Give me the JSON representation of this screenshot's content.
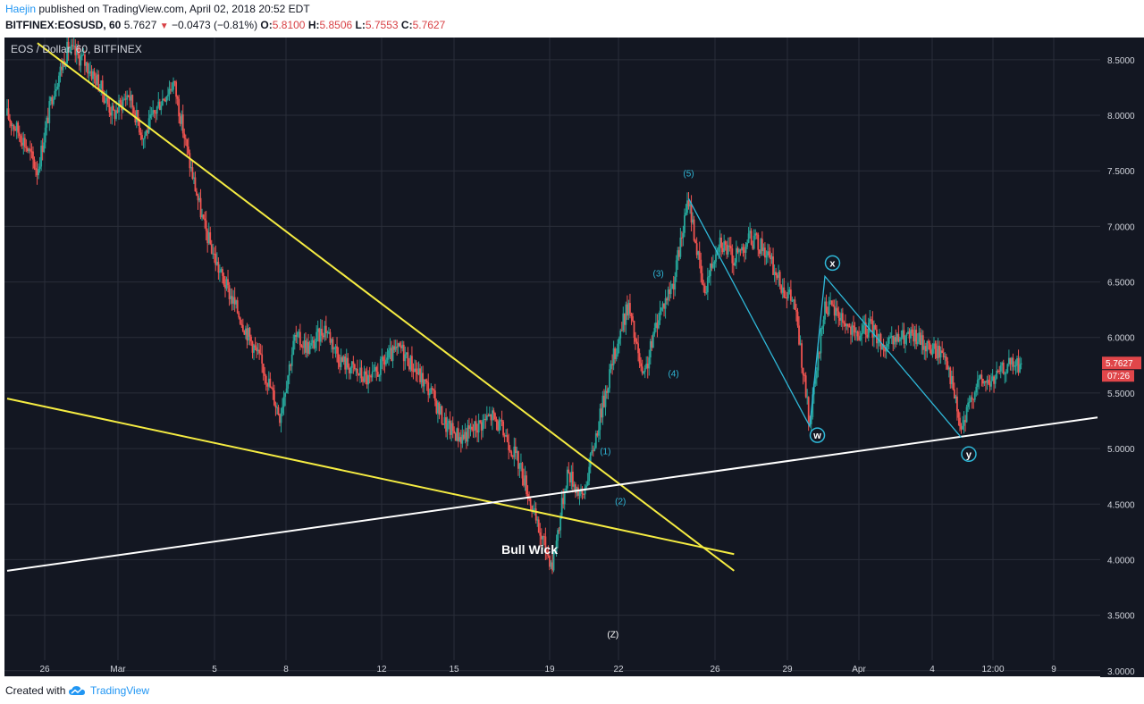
{
  "header": {
    "author": "Haejin",
    "published_text": "published on TradingView.com, April 02, 2018 20:52 EDT",
    "symbol": "BITFINEX:EOSUSD, 60",
    "last": "5.7627",
    "down_arrow": "▼",
    "change": "−0.0473 (−0.81%)",
    "o_label": "O:",
    "o_value": "5.8100",
    "h_label": "H:",
    "h_value": "5.8506",
    "l_label": "L:",
    "l_value": "5.7553",
    "c_label": "C:",
    "c_value": "5.7627"
  },
  "footer": {
    "created_with": "Created with",
    "brand": "TradingView"
  },
  "colors": {
    "background": "#131722",
    "grid": "#2a2e39",
    "bull": "#26a69a",
    "bear": "#ef5350",
    "trendline": "#f5ec42",
    "support": "#ffffff",
    "wave": "#2fb8d8",
    "price_tag": "#e0464a"
  },
  "chart_data": {
    "type": "candlestick",
    "title": "EOS / Dollar, 60, BITFINEX",
    "ylabel": "",
    "xlabel": "",
    "ylim": [
      2.95,
      8.7
    ],
    "y_ticks": [
      "8.5000",
      "8.0000",
      "7.5000",
      "7.0000",
      "6.5000",
      "6.0000",
      "5.5000",
      "5.0000",
      "4.5000",
      "4.0000",
      "3.5000",
      "3.0000"
    ],
    "x_ticks": [
      "26",
      "Mar",
      "5",
      "8",
      "12",
      "15",
      "19",
      "22",
      "26",
      "29",
      "Apr",
      "4",
      "12:00",
      "9"
    ],
    "grid": true,
    "last_price": "5.7627",
    "countdown": "07:26",
    "price_path": [
      [
        0,
        8.0
      ],
      [
        1,
        7.8
      ],
      [
        2,
        7.5
      ],
      [
        3,
        8.2
      ],
      [
        4,
        8.6
      ],
      [
        5,
        8.5
      ],
      [
        6,
        8.3
      ],
      [
        7,
        8.0
      ],
      [
        8,
        8.2
      ],
      [
        9,
        7.8
      ],
      [
        10,
        8.1
      ],
      [
        11,
        8.3
      ],
      [
        12,
        7.6
      ],
      [
        13,
        7.0
      ],
      [
        14,
        6.6
      ],
      [
        15,
        6.3
      ],
      [
        16,
        6.0
      ],
      [
        17,
        5.7
      ],
      [
        18,
        5.3
      ],
      [
        19,
        6.0
      ],
      [
        20,
        5.9
      ],
      [
        21,
        6.1
      ],
      [
        22,
        5.8
      ],
      [
        23,
        5.7
      ],
      [
        24,
        5.6
      ],
      [
        25,
        5.8
      ],
      [
        26,
        5.9
      ],
      [
        27,
        5.7
      ],
      [
        28,
        5.5
      ],
      [
        29,
        5.2
      ],
      [
        30,
        5.1
      ],
      [
        31,
        5.2
      ],
      [
        32,
        5.3
      ],
      [
        33,
        5.1
      ],
      [
        34,
        4.8
      ],
      [
        35,
        4.3
      ],
      [
        36,
        3.95
      ],
      [
        37,
        4.8
      ],
      [
        38,
        4.55
      ],
      [
        39,
        5.2
      ],
      [
        40,
        5.8
      ],
      [
        41,
        6.3
      ],
      [
        42,
        5.6
      ],
      [
        43,
        6.2
      ],
      [
        44,
        6.5
      ],
      [
        45,
        7.25
      ],
      [
        46,
        6.4
      ],
      [
        47,
        6.9
      ],
      [
        48,
        6.7
      ],
      [
        49,
        6.9
      ],
      [
        50,
        6.8
      ],
      [
        51,
        6.5
      ],
      [
        52,
        6.3
      ],
      [
        53,
        5.2
      ],
      [
        54,
        6.3
      ],
      [
        55,
        6.2
      ],
      [
        56,
        6.0
      ],
      [
        57,
        6.1
      ],
      [
        58,
        5.9
      ],
      [
        59,
        6.0
      ],
      [
        60,
        6.0
      ],
      [
        61,
        5.9
      ],
      [
        62,
        5.85
      ],
      [
        63,
        5.15
      ],
      [
        64,
        5.6
      ],
      [
        65,
        5.6
      ],
      [
        66,
        5.75
      ],
      [
        67,
        5.76
      ]
    ],
    "trendlines": [
      {
        "name": "yellow-upper",
        "color": "#f5ec42",
        "points": [
          [
            2,
            8.65
          ],
          [
            48,
            3.9
          ]
        ]
      },
      {
        "name": "yellow-lower",
        "color": "#f5ec42",
        "points": [
          [
            0,
            5.45
          ],
          [
            48,
            4.05
          ]
        ]
      },
      {
        "name": "white-support",
        "color": "#ffffff",
        "points": [
          [
            0,
            3.9
          ],
          [
            72,
            5.28
          ]
        ]
      }
    ],
    "wave_lines": [
      {
        "color": "#2fb8d8",
        "points": [
          [
            45,
            7.25
          ],
          [
            53,
            5.2
          ],
          [
            54,
            6.55
          ],
          [
            63,
            5.1
          ]
        ]
      }
    ],
    "annotations": [
      {
        "text": "(5)",
        "x": 45,
        "y": 7.45,
        "style": "wave"
      },
      {
        "text": "(3)",
        "x": 43,
        "y": 6.55,
        "style": "wave"
      },
      {
        "text": "(4)",
        "x": 44,
        "y": 5.65,
        "style": "wave"
      },
      {
        "text": "(1)",
        "x": 39.5,
        "y": 4.95,
        "style": "wave"
      },
      {
        "text": "(2)",
        "x": 40.5,
        "y": 4.5,
        "style": "wave"
      },
      {
        "text": "(Z)",
        "x": 40,
        "y": 3.3,
        "style": "white"
      },
      {
        "text": "Bull Wick",
        "x": 34.5,
        "y": 4.05,
        "style": "bold"
      },
      {
        "text": "x",
        "x": 54.5,
        "y": 6.67,
        "style": "circle"
      },
      {
        "text": "w",
        "x": 53.5,
        "y": 5.12,
        "style": "circle"
      },
      {
        "text": "y",
        "x": 63.5,
        "y": 4.95,
        "style": "circle"
      }
    ]
  }
}
